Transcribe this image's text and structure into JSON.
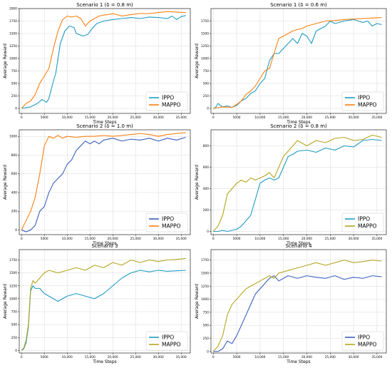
{
  "chart_data": [
    {
      "type": "line",
      "title": "Scenario 1 (δ = 0.8 m)",
      "xlabel": "Time Steps",
      "ylabel": "Average Reward",
      "xlim": [
        -500,
        37000
      ],
      "ylim": [
        -100,
        2000
      ],
      "xticks": [
        0,
        5000,
        10000,
        15000,
        20000,
        25000,
        30000,
        35000
      ],
      "xtick_labels": [
        "0",
        "5000",
        "10,000",
        "15,000",
        "20,000",
        "25,000",
        "30,000",
        "35,000"
      ],
      "yticks": [
        0,
        250,
        500,
        750,
        1000,
        1250,
        1500,
        1750,
        2000
      ],
      "ytick_labels": [
        "0",
        "250",
        "500",
        "750",
        "1000",
        "1250",
        "1500",
        "1750",
        "2000"
      ],
      "grid": true,
      "legend": "bottom-right",
      "series": [
        {
          "name": "IPPO",
          "color": "#1f9bc4",
          "x": [
            0,
            2000,
            3500,
            4500,
            5500,
            6000,
            7000,
            7500,
            8500,
            9500,
            10500,
            11500,
            12000,
            13500,
            14500,
            15500,
            16500,
            18000,
            20000,
            22000,
            24000,
            26000,
            28000,
            30000,
            32000,
            33000,
            34000,
            35000,
            36000
          ],
          "y": [
            0,
            30,
            100,
            180,
            120,
            200,
            550,
            700,
            1300,
            1550,
            1650,
            1620,
            1500,
            1450,
            1480,
            1600,
            1700,
            1750,
            1780,
            1800,
            1820,
            1800,
            1830,
            1820,
            1800,
            1850,
            1780,
            1840,
            1860
          ]
        },
        {
          "name": "MAPPO",
          "color": "#ff7f0e",
          "x": [
            0,
            1000,
            2000,
            3000,
            4000,
            5000,
            6000,
            7000,
            8000,
            9000,
            10000,
            11000,
            12000,
            13000,
            14000,
            15000,
            16000,
            17000,
            18000,
            19000,
            20000,
            22000,
            24000,
            26000,
            28000,
            30000,
            32000,
            34000,
            36000
          ],
          "y": [
            0,
            100,
            150,
            280,
            500,
            650,
            800,
            1200,
            1550,
            1780,
            1850,
            1830,
            1850,
            1800,
            1650,
            1750,
            1800,
            1850,
            1870,
            1880,
            1900,
            1850,
            1880,
            1900,
            1900,
            1920,
            1940,
            1930,
            1920
          ]
        }
      ]
    },
    {
      "type": "line",
      "title": "Scenario 1 (δ = 0.6 m)",
      "xlabel": "Time Steps",
      "ylabel": "Average Reward",
      "xlim": [
        -500,
        37000
      ],
      "ylim": [
        -100,
        2000
      ],
      "xticks": [
        0,
        5000,
        10000,
        15000,
        20000,
        25000,
        30000,
        35000
      ],
      "xtick_labels": [
        "0",
        "5000",
        "10,000",
        "15,000",
        "20,000",
        "25,000",
        "30,000",
        "35,000"
      ],
      "yticks": [
        0,
        250,
        500,
        750,
        1000,
        1250,
        1500,
        1750
      ],
      "ytick_labels": [
        "0",
        "250",
        "500",
        "750",
        "1000",
        "1250",
        "1500",
        "1750"
      ],
      "grid": true,
      "legend": "bottom-right",
      "series": [
        {
          "name": "IPPO",
          "color": "#1f9bc4",
          "x": [
            0,
            500,
            1000,
            1500,
            2000,
            3000,
            4000,
            5000,
            6000,
            7000,
            8000,
            9000,
            10000,
            11000,
            12000,
            13000,
            14000,
            15000,
            16000,
            17000,
            18000,
            19000,
            20000,
            21000,
            22000,
            23000,
            24000,
            25000,
            26000,
            28000,
            30000,
            32000,
            33000,
            34000,
            35000,
            36000
          ],
          "y": [
            0,
            20,
            100,
            60,
            30,
            50,
            20,
            60,
            150,
            200,
            300,
            350,
            500,
            600,
            950,
            1100,
            1100,
            1200,
            1300,
            1400,
            1300,
            1500,
            1450,
            1300,
            1550,
            1600,
            1650,
            1750,
            1700,
            1750,
            1780,
            1720,
            1750,
            1650,
            1700,
            1680
          ]
        },
        {
          "name": "MAPPO",
          "color": "#ff7f0e",
          "x": [
            0,
            2000,
            4000,
            5000,
            6000,
            7000,
            8000,
            9000,
            10000,
            11000,
            12000,
            13000,
            14000,
            15000,
            16000,
            17000,
            18000,
            19000,
            20000,
            22000,
            24000,
            26000,
            28000,
            30000,
            32000,
            34000,
            36000
          ],
          "y": [
            0,
            30,
            20,
            80,
            150,
            280,
            350,
            450,
            600,
            750,
            800,
            1100,
            1400,
            1450,
            1500,
            1550,
            1580,
            1600,
            1650,
            1700,
            1750,
            1760,
            1780,
            1790,
            1800,
            1810,
            1820
          ]
        }
      ]
    },
    {
      "type": "line",
      "title": "Scenario 2 (δ = 1.0 m)",
      "xlabel": "Time Steps",
      "ylabel": "Average Reward",
      "xlim": [
        -500,
        37000
      ],
      "ylim": [
        -50,
        1070
      ],
      "xticks": [
        0,
        5000,
        10000,
        15000,
        20000,
        25000,
        30000,
        35000
      ],
      "xtick_labels": [
        "0",
        "5000",
        "10,000",
        "15,000",
        "20,000",
        "25,000",
        "30,000",
        "35,000"
      ],
      "yticks": [
        0,
        200,
        400,
        600,
        800,
        1000
      ],
      "ytick_labels": [
        "0",
        "200",
        "400",
        "600",
        "800",
        "1000"
      ],
      "grid": true,
      "legend": "bottom-right",
      "series": [
        {
          "name": "IPPO",
          "color": "#3b5fc0",
          "x": [
            0,
            1000,
            2000,
            3000,
            4000,
            5000,
            6000,
            7000,
            8000,
            9000,
            10000,
            11000,
            12000,
            13000,
            14000,
            15000,
            16000,
            17000,
            18000,
            20000,
            22000,
            24000,
            26000,
            28000,
            30000,
            32000,
            34000,
            36000
          ],
          "y": [
            0,
            -20,
            0,
            50,
            200,
            250,
            400,
            500,
            550,
            600,
            700,
            750,
            850,
            900,
            950,
            920,
            950,
            920,
            960,
            980,
            950,
            970,
            960,
            980,
            950,
            980,
            960,
            990
          ]
        },
        {
          "name": "MAPPO",
          "color": "#ff7f0e",
          "x": [
            0,
            1000,
            2000,
            3000,
            4000,
            5000,
            6000,
            7000,
            8000,
            9000,
            10000,
            12000,
            14000,
            16000,
            18000,
            20000,
            22000,
            24000,
            26000,
            28000,
            30000,
            32000,
            34000,
            36000
          ],
          "y": [
            0,
            100,
            200,
            350,
            600,
            900,
            1000,
            980,
            1010,
            980,
            1000,
            990,
            1000,
            1000,
            1010,
            1000,
            1010,
            1020,
            1030,
            1020,
            1000,
            1020,
            1030,
            1040
          ]
        }
      ]
    },
    {
      "type": "line",
      "title": "Scenario 2 (δ = 0.8 m)",
      "xlabel": "Time Steps",
      "ylabel": "Average Reward",
      "xlim": [
        -500,
        37000
      ],
      "ylim": [
        -30,
        950
      ],
      "xticks": [
        0,
        5000,
        10000,
        15000,
        20000,
        25000,
        30000,
        35000
      ],
      "xtick_labels": [
        "0",
        "5000",
        "10,000",
        "15,000",
        "20,000",
        "25,000",
        "30,000",
        "35,000"
      ],
      "yticks": [
        0,
        200,
        400,
        600,
        800
      ],
      "ytick_labels": [
        "0",
        "200",
        "400",
        "600",
        "800"
      ],
      "grid": true,
      "legend": "bottom-right",
      "series": [
        {
          "name": "IPPO",
          "color": "#1f9bc4",
          "x": [
            0,
            1000,
            2000,
            3000,
            4000,
            5000,
            6000,
            7000,
            8000,
            9000,
            10000,
            11000,
            12000,
            13000,
            14000,
            15000,
            16000,
            17000,
            18000,
            20000,
            22000,
            24000,
            26000,
            28000,
            30000,
            32000,
            34000,
            36000
          ],
          "y": [
            0,
            0,
            10,
            0,
            10,
            20,
            50,
            100,
            150,
            300,
            450,
            480,
            500,
            480,
            500,
            600,
            700,
            720,
            750,
            760,
            740,
            780,
            760,
            800,
            790,
            850,
            860,
            850
          ]
        },
        {
          "name": "MAPPO",
          "color": "#b5a520",
          "x": [
            0,
            1000,
            2000,
            3000,
            4000,
            5000,
            6000,
            7000,
            8000,
            9000,
            10000,
            11000,
            12000,
            13000,
            14000,
            15000,
            16000,
            17000,
            18000,
            20000,
            22000,
            24000,
            26000,
            28000,
            30000,
            32000,
            34000,
            36000
          ],
          "y": [
            0,
            50,
            150,
            350,
            400,
            450,
            480,
            460,
            500,
            480,
            500,
            520,
            550,
            500,
            600,
            700,
            750,
            800,
            850,
            800,
            850,
            830,
            870,
            880,
            850,
            860,
            900,
            880
          ]
        }
      ]
    },
    {
      "type": "line",
      "title": "Scenario 3",
      "xlabel": "Time Steps",
      "ylabel": "Average Reward",
      "xlim": [
        -500,
        37000
      ],
      "ylim": [
        -50,
        1950
      ],
      "xticks": [
        0,
        5000,
        10000,
        15000,
        20000,
        25000,
        30000,
        35000
      ],
      "xtick_labels": [
        "0",
        "5000",
        "10,000",
        "15,000",
        "20,000",
        "25,000",
        "30,000",
        "35,000"
      ],
      "yticks": [
        0,
        250,
        500,
        750,
        1000,
        1250,
        1500,
        1750
      ],
      "ytick_labels": [
        "0",
        "250",
        "500",
        "750",
        "1000",
        "1250",
        "1500",
        "1750"
      ],
      "grid": true,
      "legend": "bottom-right",
      "series": [
        {
          "name": "IPPO",
          "color": "#1f9bc4",
          "x": [
            0,
            500,
            1000,
            1500,
            2000,
            2500,
            3000,
            4000,
            5000,
            6000,
            7000,
            8000,
            9000,
            10000,
            12000,
            14000,
            16000,
            18000,
            20000,
            22000,
            24000,
            26000,
            28000,
            30000,
            32000,
            34000,
            36000
          ],
          "y": [
            0,
            30,
            150,
            450,
            1150,
            1250,
            1200,
            1200,
            1100,
            1050,
            1000,
            950,
            1000,
            1050,
            1100,
            1050,
            1000,
            1100,
            1250,
            1400,
            1500,
            1550,
            1520,
            1550,
            1530,
            1540,
            1550
          ]
        },
        {
          "name": "MAPPO",
          "color": "#b5a520",
          "x": [
            0,
            500,
            1000,
            1500,
            2000,
            2500,
            3000,
            4000,
            5000,
            6000,
            8000,
            10000,
            12000,
            14000,
            16000,
            18000,
            20000,
            22000,
            24000,
            26000,
            28000,
            30000,
            32000,
            34000,
            36000
          ],
          "y": [
            0,
            50,
            200,
            500,
            1200,
            1350,
            1300,
            1400,
            1500,
            1550,
            1500,
            1550,
            1600,
            1550,
            1650,
            1600,
            1700,
            1650,
            1750,
            1700,
            1750,
            1720,
            1750,
            1760,
            1780
          ]
        }
      ]
    },
    {
      "type": "line",
      "title": "Scenario 4",
      "xlabel": "Time Steps",
      "ylabel": "Average Reward",
      "xlim": [
        -500,
        37000
      ],
      "ylim": [
        -30,
        1950
      ],
      "xticks": [
        0,
        5000,
        10000,
        15000,
        20000,
        25000,
        30000,
        35000
      ],
      "xtick_labels": [
        "0",
        "5000",
        "10,000",
        "15,000",
        "20,000",
        "25,000",
        "30,000",
        "35,000"
      ],
      "yticks": [
        0,
        250,
        500,
        750,
        1000,
        1250,
        1500,
        1750
      ],
      "ytick_labels": [
        "0",
        "250",
        "500",
        "750",
        "1000",
        "1250",
        "1500",
        "1750"
      ],
      "grid": true,
      "legend": "bottom-right",
      "series": [
        {
          "name": "IPPO",
          "color": "#3b5fc0",
          "x": [
            0,
            1000,
            2000,
            3000,
            4000,
            5000,
            6000,
            7000,
            8000,
            9000,
            10000,
            11000,
            12000,
            13000,
            14000,
            15000,
            16000,
            18000,
            20000,
            22000,
            24000,
            26000,
            28000,
            30000,
            32000,
            34000,
            36000
          ],
          "y": [
            0,
            0,
            50,
            200,
            150,
            300,
            500,
            700,
            900,
            1100,
            1200,
            1300,
            1400,
            1450,
            1350,
            1400,
            1450,
            1400,
            1450,
            1420,
            1400,
            1450,
            1380,
            1420,
            1400,
            1450,
            1430
          ]
        },
        {
          "name": "MAPPO",
          "color": "#b5a520",
          "x": [
            0,
            1000,
            2000,
            3000,
            4000,
            5000,
            6000,
            7000,
            8000,
            9000,
            10000,
            11000,
            12000,
            13000,
            14000,
            16000,
            18000,
            20000,
            22000,
            24000,
            26000,
            28000,
            30000,
            32000,
            34000,
            36000
          ],
          "y": [
            0,
            100,
            300,
            700,
            900,
            1000,
            1100,
            1200,
            1250,
            1300,
            1350,
            1400,
            1450,
            1400,
            1500,
            1550,
            1600,
            1650,
            1700,
            1650,
            1700,
            1750,
            1700,
            1720,
            1750,
            1730
          ]
        }
      ]
    }
  ]
}
